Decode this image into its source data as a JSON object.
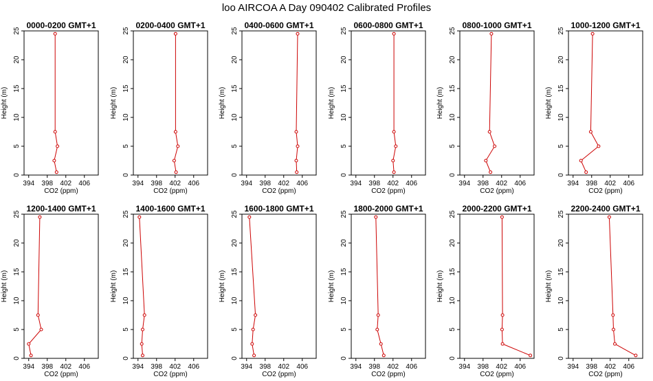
{
  "title": "loo AIRCOA A  Day 090402  Calibrated Profiles",
  "colors": {
    "line": "#cc0000",
    "point": "#cc0000",
    "axis": "#000000"
  },
  "chart_data": {
    "type": "line",
    "xlabel": "CO2 (ppm)",
    "ylabel": "Height (m)",
    "xlim": [
      393,
      409
    ],
    "ylim": [
      0,
      25
    ],
    "xticks": [
      394,
      398,
      402,
      406
    ],
    "yticks": [
      0,
      5,
      10,
      15,
      20,
      25
    ],
    "heights": [
      0.5,
      2.5,
      5,
      7.5,
      24.5
    ],
    "panels": [
      {
        "title": "0000-0200 GMT+1",
        "co2": [
          400.0,
          399.5,
          400.2,
          399.7,
          399.7
        ]
      },
      {
        "title": "0200-0400 GMT+1",
        "co2": [
          402.2,
          401.8,
          402.6,
          402.1,
          402.1
        ]
      },
      {
        "title": "0400-0600 GMT+1",
        "co2": [
          404.8,
          404.7,
          405.0,
          404.7,
          405.0
        ]
      },
      {
        "title": "0600-0800 GMT+1",
        "co2": [
          402.2,
          402.0,
          402.6,
          402.2,
          402.2
        ]
      },
      {
        "title": "0800-1000 GMT+1",
        "co2": [
          399.6,
          398.6,
          400.5,
          399.4,
          399.8
        ]
      },
      {
        "title": "1000-1200 GMT+1",
        "co2": [
          396.8,
          395.7,
          399.5,
          397.8,
          398.2
        ]
      },
      {
        "title": "1200-1400 GMT+1",
        "co2": [
          394.5,
          394.0,
          396.7,
          396.0,
          396.4
        ]
      },
      {
        "title": "1400-1600 GMT+1",
        "co2": [
          395.0,
          394.8,
          395.0,
          395.4,
          394.3
        ]
      },
      {
        "title": "1600-1800 GMT+1",
        "co2": [
          395.6,
          395.2,
          395.4,
          395.9,
          394.6
        ]
      },
      {
        "title": "1800-2000 GMT+1",
        "co2": [
          400.0,
          399.4,
          398.6,
          398.8,
          398.3
        ]
      },
      {
        "title": "2000-2200 GMT+1",
        "co2": [
          408.2,
          402.2,
          402.1,
          402.2,
          402.1
        ]
      },
      {
        "title": "2200-2400 GMT+1",
        "co2": [
          407.5,
          403.0,
          402.7,
          402.6,
          401.8
        ]
      }
    ]
  }
}
